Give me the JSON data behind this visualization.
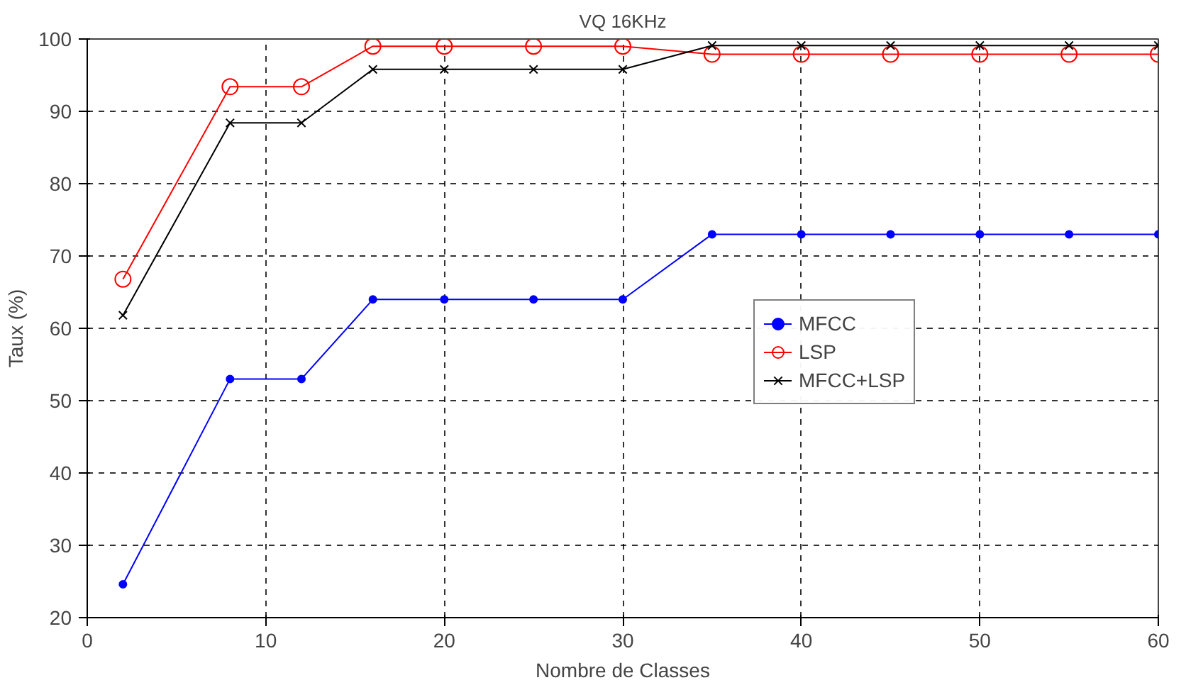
{
  "chart_data": {
    "type": "line",
    "title": "VQ 16KHz",
    "xlabel": "Nombre de Classes",
    "ylabel": "Taux (%)",
    "x": [
      2,
      8,
      12,
      16,
      20,
      25,
      30,
      35,
      40,
      45,
      50,
      55,
      60
    ],
    "series": [
      {
        "name": "MFCC",
        "color": "#0000ff",
        "marker": "circle",
        "values": [
          24.6,
          53,
          53,
          64,
          64,
          64,
          64,
          73,
          73,
          73,
          73,
          73,
          73
        ]
      },
      {
        "name": "LSP",
        "color": "#ff0000",
        "marker": "circle_open",
        "values": [
          66.8,
          93.4,
          93.4,
          99,
          99,
          99,
          99,
          97.9,
          97.9,
          97.9,
          97.9,
          97.9,
          97.9
        ]
      },
      {
        "name": "MFCC+LSP",
        "color": "#000000",
        "marker": "cross",
        "values": [
          61.8,
          88.4,
          88.4,
          95.8,
          95.8,
          95.8,
          95.8,
          99.1,
          99.1,
          99.1,
          99.1,
          99.1,
          99.1
        ]
      }
    ],
    "xlim": [
      0,
      60
    ],
    "xticks": [
      0,
      10,
      20,
      30,
      40,
      50,
      60
    ],
    "ylim": [
      20,
      100
    ],
    "yticks": [
      20,
      30,
      40,
      50,
      60,
      70,
      80,
      90,
      100
    ],
    "grid": true,
    "legend": "right",
    "line_style": "solid"
  }
}
